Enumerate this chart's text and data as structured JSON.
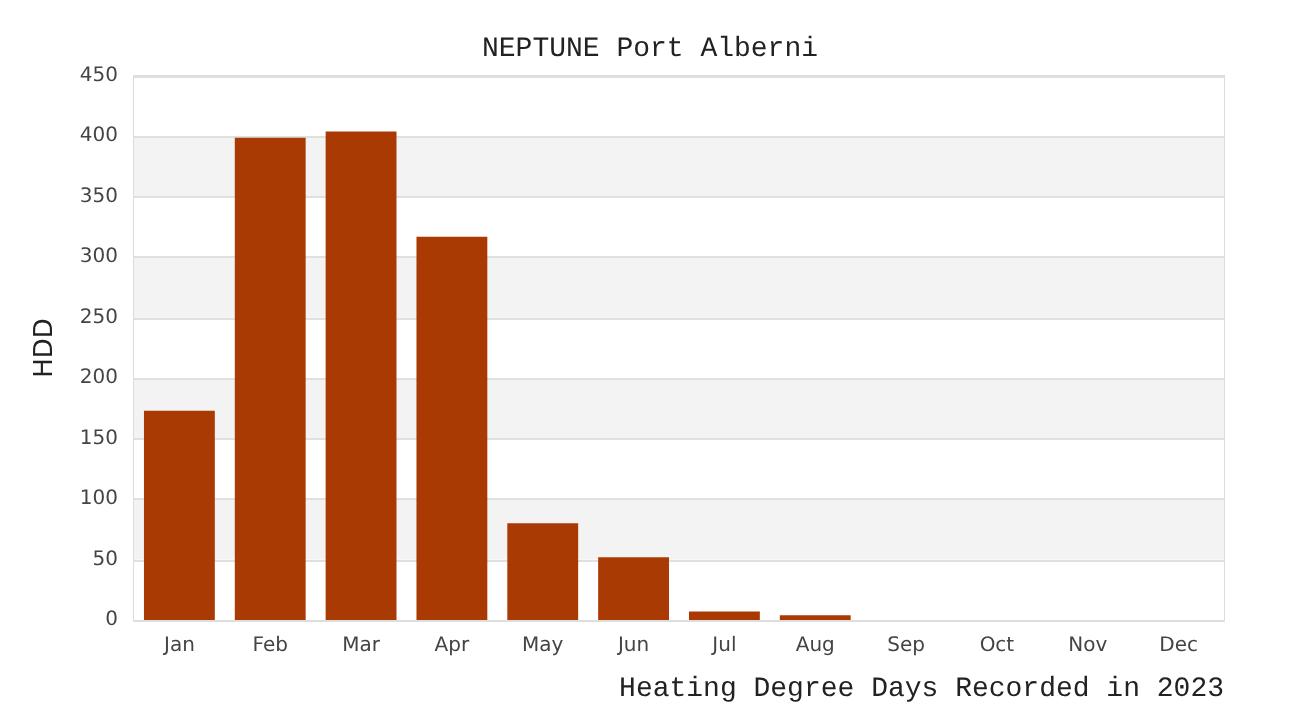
{
  "chart_data": {
    "type": "bar",
    "title": "NEPTUNE Port Alberni",
    "xlabel": "Heating Degree Days Recorded in 2023",
    "ylabel": "HDD",
    "categories": [
      "Jan",
      "Feb",
      "Mar",
      "Apr",
      "May",
      "Jun",
      "Jul",
      "Aug",
      "Sep",
      "Oct",
      "Nov",
      "Dec"
    ],
    "values": [
      173,
      399,
      404,
      317,
      80,
      52,
      7,
      4,
      0,
      0,
      0,
      0
    ],
    "color": "#aa3a03",
    "ylim": [
      0,
      450
    ],
    "yticks": [
      0,
      50,
      100,
      150,
      200,
      250,
      300,
      350,
      400,
      450
    ],
    "grid": "y"
  }
}
